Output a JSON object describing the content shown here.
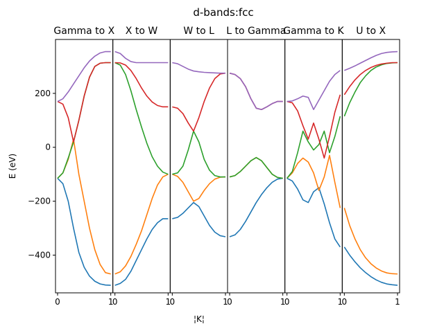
{
  "chart_data": {
    "type": "line",
    "title": "d-bands:fcc",
    "ylabel": "E (eV)",
    "xlabel": "¦K¦",
    "ylim": [
      -540,
      400
    ],
    "yticks": [
      -400,
      -200,
      0,
      200
    ],
    "grid": false,
    "legend": "none",
    "colors": [
      "#1f77b4",
      "#ff7f0e",
      "#2ca02c",
      "#d62728",
      "#9467bd"
    ],
    "panels": [
      {
        "title": "Gamma to X",
        "xlim": [
          0,
          1
        ],
        "xticks": [
          0,
          1
        ],
        "xticklabels": [
          "0",
          "1"
        ],
        "x": [
          0.0,
          0.1,
          0.2,
          0.3,
          0.4,
          0.5,
          0.6,
          0.7,
          0.8,
          0.9,
          1.0
        ],
        "series": [
          {
            "values": [
              -115,
              -135,
              -200,
              -300,
              -390,
              -445,
              -478,
              -497,
              -507,
              -511,
              -512
            ]
          },
          {
            "values": [
              -115,
              -95,
              -45,
              30,
              -100,
              -200,
              -300,
              -380,
              -435,
              -465,
              -470
            ]
          },
          {
            "values": [
              -115,
              -95,
              -40,
              20,
              100,
              190,
              260,
              300,
              312,
              314,
              314
            ]
          },
          {
            "values": [
              170,
              160,
              110,
              20,
              100,
              190,
              260,
              300,
              312,
              314,
              314
            ]
          },
          {
            "values": [
              170,
              180,
              205,
              235,
              265,
              295,
              320,
              338,
              350,
              355,
              355
            ]
          }
        ]
      },
      {
        "title": "X to W",
        "xlim": [
          0,
          1
        ],
        "xticks": [
          0,
          1
        ],
        "xticklabels": [
          "0",
          "1"
        ],
        "x": [
          0.0,
          0.1,
          0.2,
          0.3,
          0.4,
          0.5,
          0.6,
          0.7,
          0.8,
          0.9,
          1.0
        ],
        "series": [
          {
            "values": [
              -512,
              -505,
              -490,
              -460,
              -420,
              -380,
              -340,
              -305,
              -280,
              -265,
              -265
            ]
          },
          {
            "values": [
              -470,
              -462,
              -440,
              -405,
              -360,
              -310,
              -250,
              -190,
              -140,
              -110,
              -100
            ]
          },
          {
            "values": [
              314,
              305,
              270,
              210,
              140,
              75,
              15,
              -35,
              -70,
              -92,
              -100
            ]
          },
          {
            "values": [
              314,
              313,
              305,
              285,
              255,
              220,
              190,
              168,
              155,
              150,
              150
            ]
          },
          {
            "values": [
              355,
              348,
              330,
              318,
              314,
              314,
              314,
              314,
              314,
              314,
              314
            ]
          }
        ]
      },
      {
        "title": "W to L",
        "xlim": [
          0,
          1
        ],
        "xticks": [
          0,
          1
        ],
        "xticklabels": [
          "0",
          "1"
        ],
        "x": [
          0.0,
          0.1,
          0.2,
          0.3,
          0.4,
          0.5,
          0.6,
          0.7,
          0.8,
          0.9,
          1.0
        ],
        "series": [
          {
            "values": [
              -265,
              -260,
              -245,
              -225,
              -205,
              -220,
              -255,
              -290,
              -315,
              -328,
              -332
            ]
          },
          {
            "values": [
              -100,
              -108,
              -130,
              -165,
              -200,
              -190,
              -160,
              -135,
              -118,
              -111,
              -110
            ]
          },
          {
            "values": [
              -100,
              -95,
              -70,
              -10,
              60,
              20,
              -45,
              -85,
              -105,
              -110,
              -110
            ]
          },
          {
            "values": [
              150,
              145,
              125,
              90,
              60,
              110,
              170,
              220,
              255,
              272,
              275
            ]
          },
          {
            "values": [
              314,
              310,
              300,
              290,
              283,
              280,
              278,
              277,
              276,
              275,
              275
            ]
          }
        ]
      },
      {
        "title": "L to Gamma",
        "xlim": [
          0,
          1
        ],
        "xticks": [
          0,
          1
        ],
        "xticklabels": [
          "0",
          "1"
        ],
        "x": [
          0.0,
          0.1,
          0.2,
          0.3,
          0.4,
          0.5,
          0.6,
          0.7,
          0.8,
          0.9,
          1.0
        ],
        "series": [
          {
            "values": [
              -332,
              -325,
              -305,
              -275,
              -240,
              -205,
              -175,
              -150,
              -130,
              -118,
              -115
            ]
          },
          {
            "values": [
              -110,
              -105,
              -90,
              -70,
              -50,
              -38,
              -50,
              -75,
              -100,
              -112,
              -115
            ]
          },
          {
            "values": [
              -110,
              -105,
              -90,
              -70,
              -50,
              -38,
              -50,
              -75,
              -100,
              -112,
              -115
            ]
          },
          {
            "values": [
              275,
              270,
              255,
              225,
              180,
              145,
              140,
              150,
              162,
              170,
              170
            ]
          },
          {
            "values": [
              275,
              270,
              255,
              225,
              180,
              145,
              140,
              150,
              162,
              170,
              170
            ]
          }
        ]
      },
      {
        "title": "Gamma to K",
        "xlim": [
          0,
          1
        ],
        "xticks": [
          0,
          1
        ],
        "xticklabels": [
          "0",
          "1"
        ],
        "x": [
          0.0,
          0.1,
          0.2,
          0.3,
          0.4,
          0.5,
          0.6,
          0.7,
          0.8,
          0.9,
          1.0
        ],
        "series": [
          {
            "values": [
              -115,
              -125,
              -155,
              -195,
              -205,
              -165,
              -150,
              -210,
              -280,
              -340,
              -370
            ]
          },
          {
            "values": [
              -115,
              -95,
              -60,
              -40,
              -55,
              -95,
              -160,
              -110,
              -30,
              -130,
              -225
            ]
          },
          {
            "values": [
              -115,
              -90,
              -20,
              60,
              20,
              -10,
              10,
              60,
              -20,
              40,
              115
            ]
          },
          {
            "values": [
              170,
              165,
              135,
              80,
              30,
              90,
              30,
              -40,
              40,
              130,
              195
            ]
          },
          {
            "values": [
              170,
              172,
              180,
              190,
              185,
              140,
              175,
              210,
              245,
              270,
              285
            ]
          }
        ]
      },
      {
        "title": "U to X",
        "xlim": [
          0,
          1
        ],
        "xticks": [
          0,
          1
        ],
        "xticklabels": [
          "0",
          "1"
        ],
        "x": [
          0.0,
          0.1,
          0.2,
          0.3,
          0.4,
          0.5,
          0.6,
          0.7,
          0.8,
          0.9,
          1.0
        ],
        "series": [
          {
            "values": [
              -370,
              -400,
              -425,
              -447,
              -465,
              -480,
              -492,
              -501,
              -507,
              -510,
              -512
            ]
          },
          {
            "values": [
              -225,
              -290,
              -340,
              -380,
              -410,
              -432,
              -448,
              -459,
              -466,
              -469,
              -470
            ]
          },
          {
            "values": [
              115,
              165,
              205,
              240,
              265,
              285,
              298,
              306,
              311,
              313,
              314
            ]
          },
          {
            "values": [
              195,
              225,
              250,
              270,
              285,
              296,
              304,
              309,
              312,
              314,
              314
            ]
          },
          {
            "values": [
              285,
              293,
              302,
              312,
              322,
              332,
              341,
              348,
              352,
              354,
              355
            ]
          }
        ]
      }
    ]
  }
}
